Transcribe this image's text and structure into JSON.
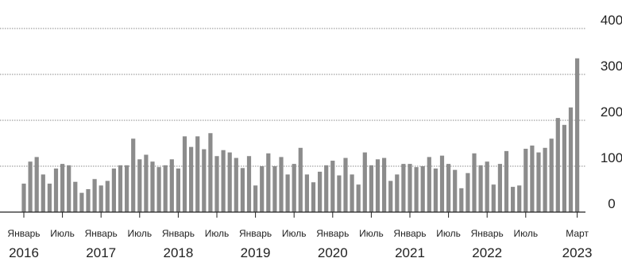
{
  "chart_data": {
    "type": "bar",
    "title": "",
    "xlabel": "",
    "ylabel": "",
    "ylim": [
      0,
      400
    ],
    "y_axis_position": "right",
    "grid": true,
    "yticks": [
      0,
      100,
      200,
      300,
      400
    ],
    "series_color": "#8c8c8c",
    "categories": [
      "2016-01",
      "2016-02",
      "2016-03",
      "2016-04",
      "2016-05",
      "2016-06",
      "2016-07",
      "2016-08",
      "2016-09",
      "2016-10",
      "2016-11",
      "2016-12",
      "2017-01",
      "2017-02",
      "2017-03",
      "2017-04",
      "2017-05",
      "2017-06",
      "2017-07",
      "2017-08",
      "2017-09",
      "2017-10",
      "2017-11",
      "2017-12",
      "2018-01",
      "2018-02",
      "2018-03",
      "2018-04",
      "2018-05",
      "2018-06",
      "2018-07",
      "2018-08",
      "2018-09",
      "2018-10",
      "2018-11",
      "2018-12",
      "2019-01",
      "2019-02",
      "2019-03",
      "2019-04",
      "2019-05",
      "2019-06",
      "2019-07",
      "2019-08",
      "2019-09",
      "2019-10",
      "2019-11",
      "2019-12",
      "2020-01",
      "2020-02",
      "2020-03",
      "2020-04",
      "2020-05",
      "2020-06",
      "2020-07",
      "2020-08",
      "2020-09",
      "2020-10",
      "2020-11",
      "2020-12",
      "2021-01",
      "2021-02",
      "2021-03",
      "2021-04",
      "2021-05",
      "2021-06",
      "2021-07",
      "2021-08",
      "2021-09",
      "2021-10",
      "2021-11",
      "2021-12",
      "2022-01",
      "2022-02",
      "2022-03",
      "2022-04",
      "2022-05",
      "2022-06",
      "2022-07",
      "2022-08",
      "2022-09",
      "2022-10",
      "2022-11",
      "2022-12",
      "2023-01",
      "2023-02",
      "2023-03"
    ],
    "values": [
      62,
      110,
      120,
      82,
      62,
      95,
      105,
      102,
      66,
      42,
      50,
      72,
      58,
      68,
      95,
      102,
      102,
      160,
      115,
      125,
      110,
      98,
      102,
      115,
      95,
      165,
      142,
      165,
      137,
      172,
      122,
      135,
      130,
      118,
      96,
      122,
      58,
      100,
      128,
      100,
      120,
      82,
      105,
      140,
      82,
      65,
      88,
      102,
      112,
      80,
      118,
      82,
      60,
      130,
      102,
      115,
      118,
      68,
      82,
      105,
      105,
      98,
      100,
      120,
      95,
      123,
      105,
      92,
      52,
      85,
      128,
      102,
      110,
      60,
      105,
      133,
      55,
      58,
      138,
      145,
      130,
      140,
      160,
      205,
      190,
      228,
      335
    ],
    "x_month_labels": [
      "Январь",
      "Июль",
      "Январь",
      "Июль",
      "Январь",
      "Июль",
      "Январь",
      "Июль",
      "Январь",
      "Июль",
      "Январь",
      "Июль",
      "Январь",
      "Июль",
      "Март"
    ],
    "x_month_label_indices": [
      0,
      6,
      12,
      18,
      24,
      30,
      36,
      42,
      48,
      54,
      60,
      66,
      72,
      78,
      86
    ],
    "x_year_labels": [
      "2016",
      "2017",
      "2018",
      "2019",
      "2020",
      "2021",
      "2022",
      "2023"
    ],
    "x_year_label_indices": [
      0,
      12,
      24,
      36,
      48,
      60,
      72,
      86
    ]
  }
}
